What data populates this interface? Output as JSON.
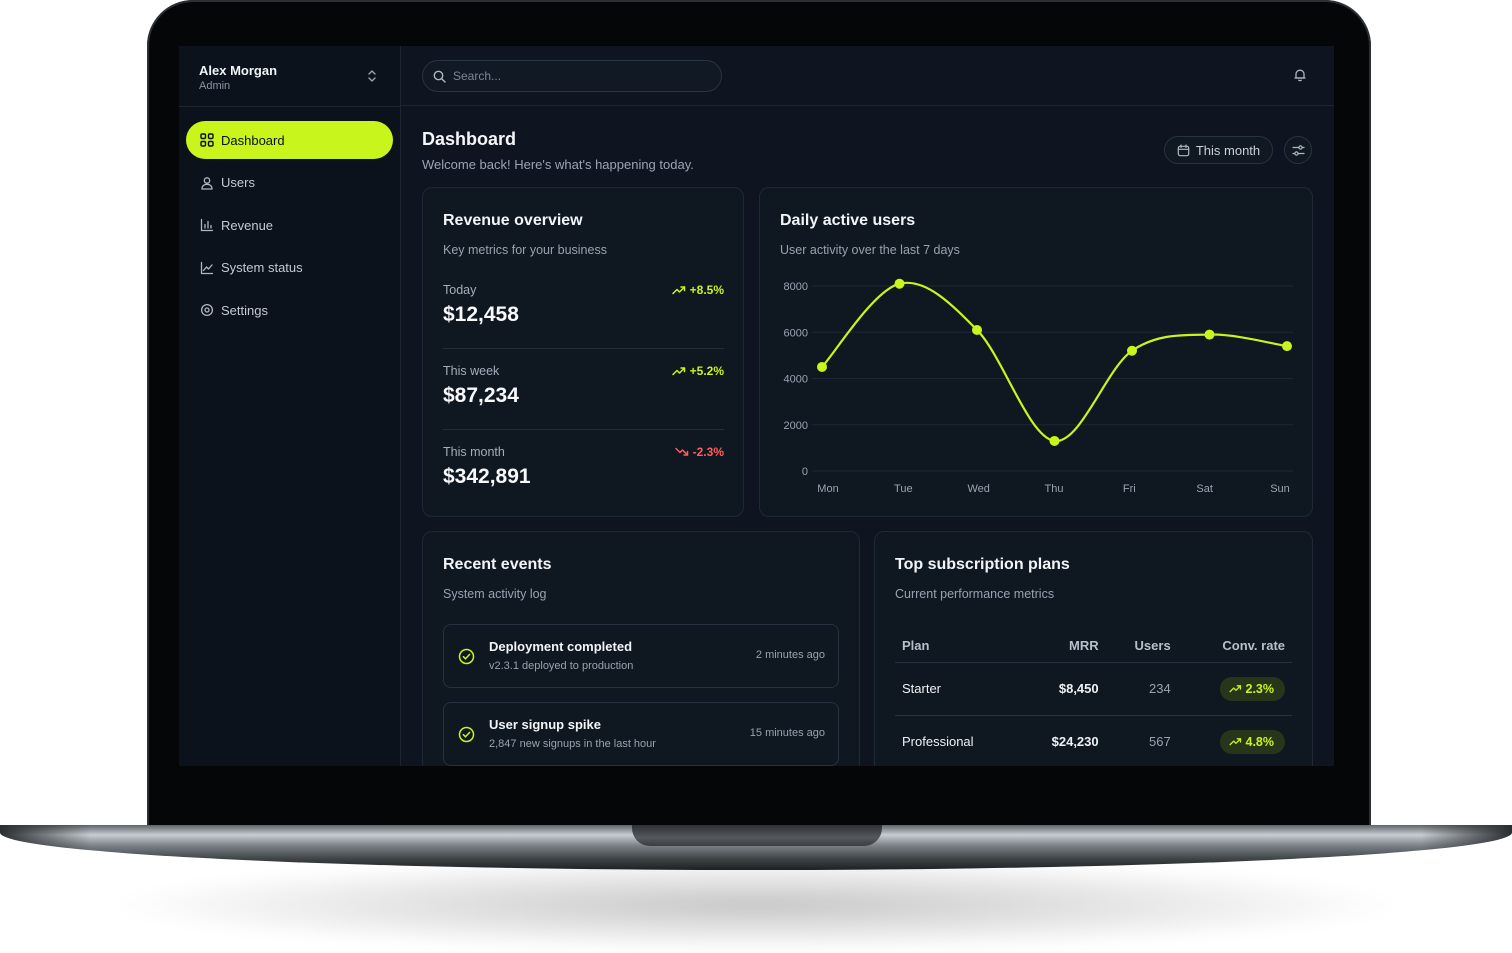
{
  "user": {
    "name": "Alex Morgan",
    "role": "Admin"
  },
  "nav": [
    {
      "label": "Dashboard",
      "icon": "grid-icon",
      "active": true
    },
    {
      "label": "Users",
      "icon": "user-icon"
    },
    {
      "label": "Revenue",
      "icon": "bar-chart-icon"
    },
    {
      "label": "System status",
      "icon": "line-chart-icon"
    },
    {
      "label": "Settings",
      "icon": "gear-icon"
    }
  ],
  "search": {
    "placeholder": "Search..."
  },
  "page": {
    "title": "Dashboard",
    "subtitle": "Welcome back! Here's what's happening today."
  },
  "range": {
    "label": "This month"
  },
  "revenue": {
    "title": "Revenue overview",
    "subtitle": "Key metrics for your business",
    "rows": [
      {
        "label": "Today",
        "value": "$12,458",
        "change": "+8.5%",
        "trend": "up"
      },
      {
        "label": "This week",
        "value": "$87,234",
        "change": "+5.2%",
        "trend": "up"
      },
      {
        "label": "This month",
        "value": "$342,891",
        "change": "-2.3%",
        "trend": "down"
      }
    ]
  },
  "dau": {
    "title": "Daily active users",
    "subtitle": "User activity over the last 7 days"
  },
  "chart_data": {
    "type": "line",
    "categories": [
      "Mon",
      "Tue",
      "Wed",
      "Thu",
      "Fri",
      "Sat",
      "Sun"
    ],
    "values": [
      4500,
      8100,
      6100,
      1300,
      5200,
      5900,
      5400
    ],
    "ylim": [
      0,
      8000
    ],
    "yticks": [
      0,
      2000,
      4000,
      6000,
      8000
    ],
    "grid": true,
    "line_color": "#c8f51b"
  },
  "events": {
    "title": "Recent events",
    "subtitle": "System activity log",
    "items": [
      {
        "title": "Deployment completed",
        "desc": "v2.3.1 deployed to production",
        "time": "2 minutes ago"
      },
      {
        "title": "User signup spike",
        "desc": "2,847 new signups in the last hour",
        "time": "15 minutes ago"
      }
    ]
  },
  "plans": {
    "title": "Top subscription plans",
    "subtitle": "Current performance metrics",
    "columns": [
      "Plan",
      "MRR",
      "Users",
      "Conv. rate"
    ],
    "rows": [
      {
        "plan": "Starter",
        "mrr": "$8,450",
        "users": "234",
        "rate": "2.3%"
      },
      {
        "plan": "Professional",
        "mrr": "$24,230",
        "users": "567",
        "rate": "4.8%"
      }
    ]
  },
  "colors": {
    "accent": "#c8f51b",
    "negative": "#ff5c5c",
    "background": "#0e1520"
  }
}
